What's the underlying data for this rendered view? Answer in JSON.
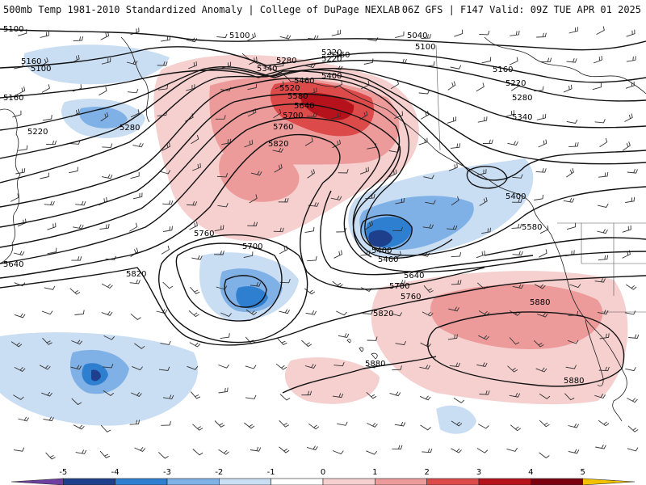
{
  "header": {
    "title_left": "500mb Temp 1981-2010 Standardized Anomaly | College of DuPage NEXLAB",
    "title_right": "06Z GFS | F147 Valid: 09Z TUE APR 01 2025"
  },
  "legend": {
    "ticks": [
      "-5",
      "-4",
      "-3",
      "-2",
      "-1",
      "0",
      "1",
      "2",
      "3",
      "4",
      "5"
    ],
    "colors": [
      "#6e3fa0",
      "#1e3f8c",
      "#2f7fd0",
      "#7fb0e6",
      "#c9ddf3",
      "#ffffff",
      "#f6cfcf",
      "#ec9a9a",
      "#dd4a4a",
      "#b5121b",
      "#7a0010",
      "#f2c200"
    ]
  },
  "contour_labels": [
    "5100",
    "5100",
    "5100",
    "5160",
    "5220",
    "5280",
    "5340",
    "5400",
    "5460",
    "5520",
    "5580",
    "5640",
    "5700",
    "5760",
    "5820",
    "5040",
    "5100",
    "5160",
    "5220",
    "5280",
    "5340",
    "5400",
    "5400",
    "5460",
    "5580",
    "5640",
    "5700",
    "5760",
    "5820",
    "5880",
    "5880",
    "5880",
    "5160",
    "5220",
    "5280",
    "5220",
    "5160",
    "5640",
    "5820",
    "5760",
    "5700"
  ]
}
